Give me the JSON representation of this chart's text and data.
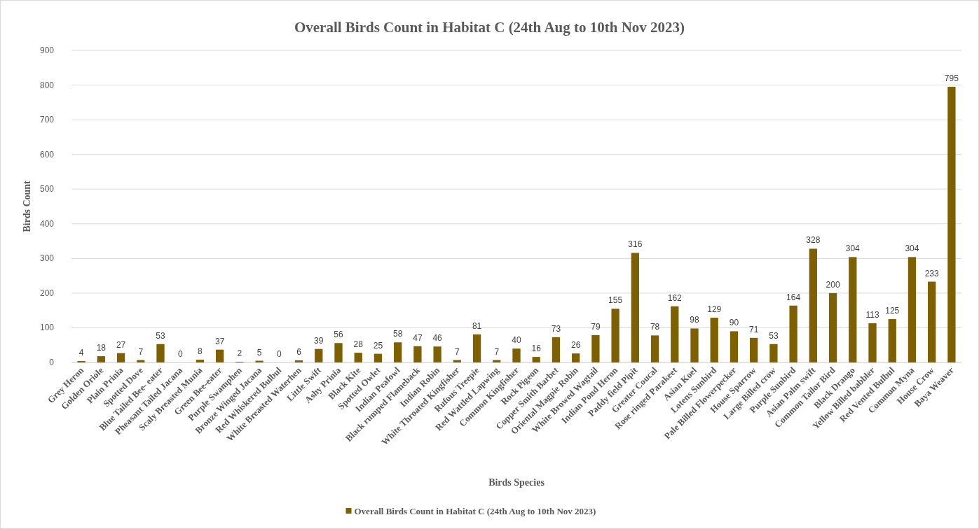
{
  "chart_data": {
    "type": "bar",
    "title": "Overall Birds Count in Habitat C (24th Aug to 10th Nov 2023)",
    "xlabel": "Birds Species",
    "ylabel": "Birds Count",
    "categories": [
      "Grey Heron",
      "Golden Oriole",
      "Plain Prinia",
      "Spotted Dove",
      "Blue Tailed Bee- eater",
      "Pheasant Tailed Jacana",
      "Scaly Breasted Munia",
      "Green Bee-eater",
      "Purple Swamphen",
      "Bronze Winged Jacana",
      "Red Whiskered Bulbul",
      "White Breasted Waterhen",
      "Little Swift",
      "Ashy Prinia",
      "Black Kite",
      "Spotted Owlet",
      "Indian Peafowl",
      "Black rumped Flameback",
      "Indian Robin",
      "White Throated Kingfisher",
      "Rufous Treepie",
      "Red Wattled Lapwing",
      "Common Kingfisher",
      "Rock Pigeon",
      "Copper Smith Barbet",
      "Oriental Magpie Robin",
      "White Browed Wagtail",
      "Indian Pond Heron",
      "Paddy field Pipit",
      "Greater Coucal",
      "Rose ringed Parakeet",
      "Asian Koel",
      "Lotens Sunbird",
      "Pale Billed Flowerpecker",
      "House Sparrow",
      "Large Billed crow",
      "Purple Sunbird",
      "Asian Palm swift",
      "Common Tailor Bird",
      "Black Drango",
      "Yellow Billed babbler",
      "Red Vented Bulbul",
      "Common Myna",
      "House Crow",
      "Baya Weaver"
    ],
    "series": [
      {
        "name": "Overall Birds Count in Habitat C (24th Aug to 10th Nov 2023)",
        "color": "#7f6000",
        "values": [
          4,
          18,
          27,
          7,
          53,
          0,
          8,
          37,
          2,
          5,
          0,
          6,
          39,
          56,
          28,
          25,
          58,
          47,
          46,
          7,
          81,
          7,
          40,
          16,
          73,
          26,
          79,
          155,
          316,
          78,
          162,
          98,
          129,
          90,
          71,
          53,
          164,
          328,
          200,
          304,
          113,
          125,
          304,
          233,
          795
        ]
      }
    ],
    "ylim": [
      0,
      900
    ],
    "yticks": [
      0,
      100,
      200,
      300,
      400,
      500,
      600,
      700,
      800,
      900
    ],
    "grid": "y",
    "legend": "bottom",
    "data_labels": true
  }
}
